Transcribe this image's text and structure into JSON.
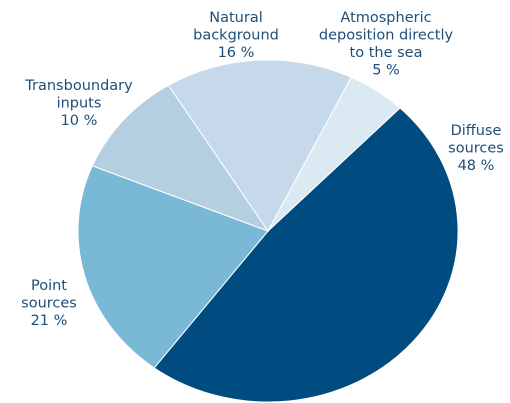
{
  "chart_data": {
    "type": "pie",
    "title": "",
    "start_angle_deg": 44,
    "direction": "clockwise",
    "legend": "none",
    "slices": [
      {
        "label": [
          "Diffuse",
          "sources"
        ],
        "value": 48,
        "value_text": "48 %",
        "color": "#004b80"
      },
      {
        "label": [
          "Point",
          "sources"
        ],
        "value": 21,
        "value_text": "21 %",
        "color": "#79b9d5"
      },
      {
        "label": [
          "Transboundary",
          "inputs"
        ],
        "value": 10,
        "value_text": "10 %",
        "color": "#b3cfe0"
      },
      {
        "label": [
          "Natural",
          "background"
        ],
        "value": 16,
        "value_text": "16 %",
        "color": "#c5d9ea"
      },
      {
        "label": [
          "Atmospheric",
          "deposition directly",
          "to the sea"
        ],
        "value": 5,
        "value_text": "5 %",
        "color": "#dbe9f3"
      }
    ]
  }
}
